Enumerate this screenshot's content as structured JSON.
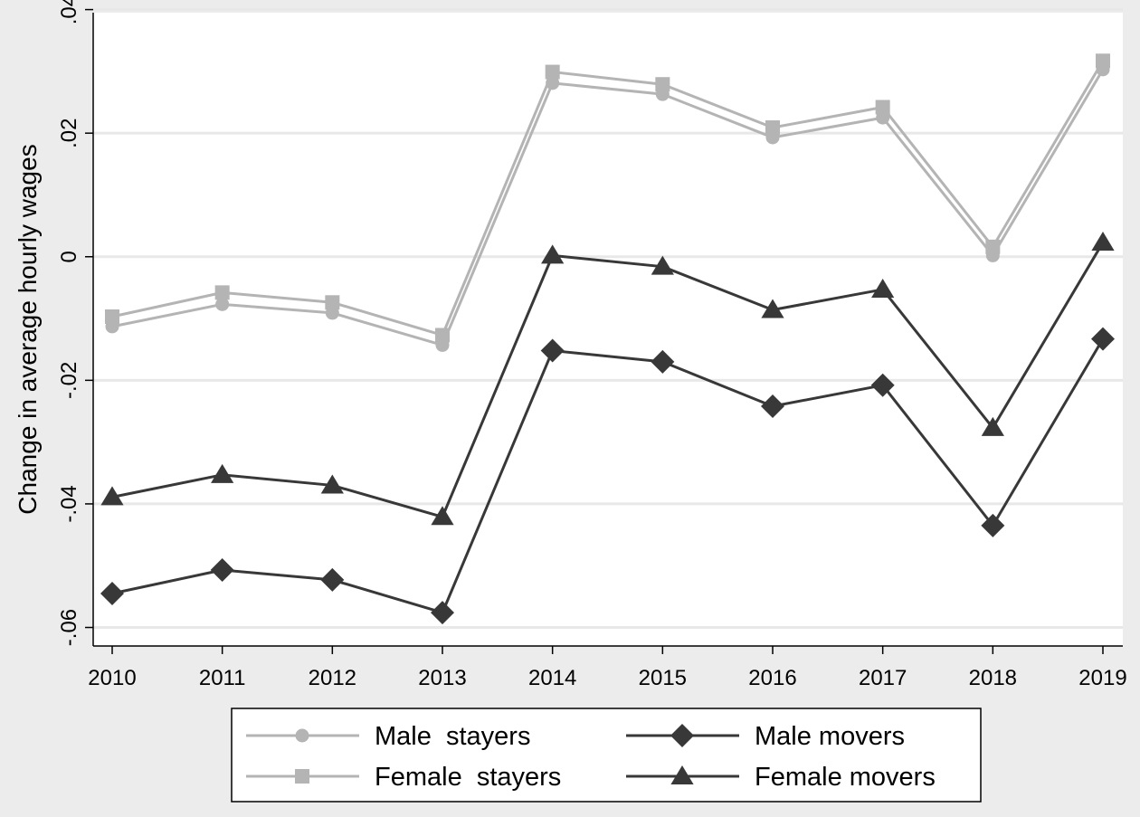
{
  "chart_data": {
    "type": "line",
    "title": "",
    "xlabel": "",
    "ylabel": "Change in average hourly wages",
    "x": [
      "2010",
      "2011",
      "2012",
      "2013",
      "2014",
      "2015",
      "2016",
      "2017",
      "2018",
      "2019"
    ],
    "ylim": [
      -0.063,
      0.0395
    ],
    "yticks": [
      -0.06,
      -0.04,
      -0.02,
      0,
      0.02,
      0.04
    ],
    "ytick_labels": [
      "-.06",
      "-.04",
      "-.02",
      "0",
      ".02",
      ".04"
    ],
    "grid": true,
    "legend_position": "bottom",
    "series": [
      {
        "name": "Male  stayers",
        "marker": "circle",
        "color": "#b4b4b4",
        "values": [
          -0.0113,
          -0.0077,
          -0.0091,
          -0.0143,
          0.0281,
          0.0263,
          0.0193,
          0.0225,
          0.0002,
          0.0303
        ]
      },
      {
        "name": "Female  stayers",
        "marker": "square",
        "color": "#b4b4b4",
        "values": [
          -0.0097,
          -0.0058,
          -0.0074,
          -0.0127,
          0.0299,
          0.0279,
          0.0209,
          0.0242,
          0.0016,
          0.0317
        ]
      },
      {
        "name": "Male movers",
        "marker": "diamond",
        "color": "#383838",
        "values": [
          -0.0545,
          -0.0507,
          -0.0523,
          -0.0576,
          -0.0152,
          -0.017,
          -0.0242,
          -0.0208,
          -0.0435,
          -0.0133
        ]
      },
      {
        "name": "Female movers",
        "marker": "triangle",
        "color": "#383838",
        "values": [
          -0.0389,
          -0.0353,
          -0.037,
          -0.0421,
          0.0002,
          -0.0016,
          -0.0086,
          -0.0053,
          -0.0277,
          0.0023
        ]
      }
    ]
  }
}
